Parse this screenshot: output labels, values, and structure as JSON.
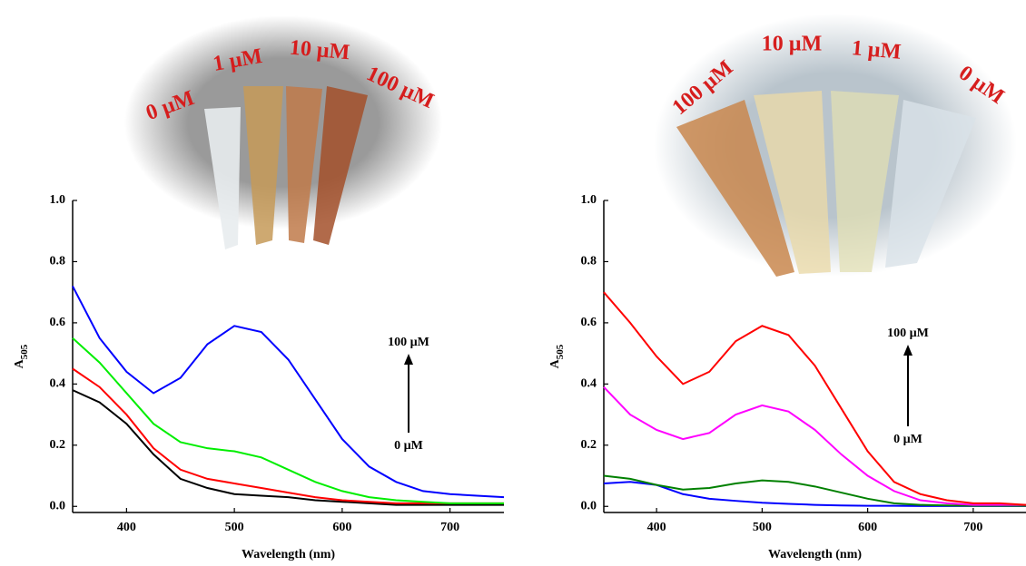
{
  "chart_data": [
    {
      "type": "line",
      "x_label": "Wavelength (nm)",
      "y_label": "A",
      "y_label_subscript": "505",
      "photo_labels": [
        "0 µM",
        "1 µM",
        "10 µM",
        "100 µM"
      ],
      "annotations": [
        "100 µM",
        "0 µM"
      ],
      "x": [
        350,
        375,
        400,
        425,
        450,
        475,
        500,
        525,
        550,
        575,
        600,
        625,
        650,
        675,
        700,
        725,
        750
      ],
      "xlim": [
        350,
        750
      ],
      "xticks": [
        400,
        500,
        600,
        700
      ],
      "ylim": [
        -0.02,
        1.0
      ],
      "yticks": [
        {
          "value": 0,
          "label": "0.0"
        },
        {
          "value": 0.2,
          "label": "0.2"
        },
        {
          "value": 0.4,
          "label": "0.4"
        },
        {
          "value": 0.6,
          "label": "0.6"
        },
        {
          "value": 0.8,
          "label": "0.8"
        },
        {
          "value": 1.0,
          "label": "1.0"
        }
      ],
      "series": [
        {
          "color": "#000000",
          "values": [
            0.38,
            0.34,
            0.27,
            0.17,
            0.09,
            0.06,
            0.04,
            0.035,
            0.03,
            0.02,
            0.015,
            0.01,
            0.005,
            0.005,
            0.005,
            0.005,
            0.005
          ]
        },
        {
          "color": "#ff0000",
          "values": [
            0.45,
            0.39,
            0.3,
            0.19,
            0.12,
            0.09,
            0.075,
            0.06,
            0.045,
            0.03,
            0.02,
            0.015,
            0.01,
            0.01,
            0.01,
            0.01,
            0.01
          ]
        },
        {
          "color": "#00ee00",
          "values": [
            0.55,
            0.47,
            0.37,
            0.27,
            0.21,
            0.19,
            0.18,
            0.16,
            0.12,
            0.08,
            0.05,
            0.03,
            0.02,
            0.015,
            0.01,
            0.01,
            0.01
          ]
        },
        {
          "color": "#0000ff",
          "values": [
            0.72,
            0.55,
            0.44,
            0.37,
            0.42,
            0.53,
            0.59,
            0.57,
            0.48,
            0.35,
            0.22,
            0.13,
            0.08,
            0.05,
            0.04,
            0.035,
            0.03
          ]
        }
      ]
    },
    {
      "type": "line",
      "x_label": "Wavelength (nm)",
      "y_label": "A",
      "y_label_subscript": "505",
      "photo_labels": [
        "100 µM",
        "10 µM",
        "1 µM",
        "0 µM"
      ],
      "annotations": [
        "100 µM",
        "0 µM"
      ],
      "x": [
        350,
        375,
        400,
        425,
        450,
        475,
        500,
        525,
        550,
        575,
        600,
        625,
        650,
        675,
        700,
        725,
        750
      ],
      "xlim": [
        350,
        750
      ],
      "xticks": [
        400,
        500,
        600,
        700
      ],
      "ylim": [
        -0.02,
        1.0
      ],
      "yticks": [
        {
          "value": 0,
          "label": "0.0"
        },
        {
          "value": 0.2,
          "label": "0.2"
        },
        {
          "value": 0.4,
          "label": "0.4"
        },
        {
          "value": 0.6,
          "label": "0.6"
        },
        {
          "value": 0.8,
          "label": "0.8"
        },
        {
          "value": 1.0,
          "label": "1.0"
        }
      ],
      "series": [
        {
          "color": "#0000ff",
          "values": [
            0.075,
            0.08,
            0.07,
            0.04,
            0.025,
            0.018,
            0.012,
            0.008,
            0.005,
            0.003,
            0.002,
            0.002,
            0.001,
            0.001,
            0.001,
            0.001,
            0.001
          ]
        },
        {
          "color": "#008000",
          "values": [
            0.1,
            0.09,
            0.07,
            0.055,
            0.06,
            0.075,
            0.085,
            0.08,
            0.065,
            0.045,
            0.025,
            0.01,
            0.005,
            0.003,
            0.002,
            0.002,
            0.002
          ]
        },
        {
          "color": "#ff00ff",
          "values": [
            0.39,
            0.3,
            0.25,
            0.22,
            0.24,
            0.3,
            0.33,
            0.31,
            0.25,
            0.17,
            0.1,
            0.05,
            0.02,
            0.01,
            0.005,
            0.005,
            0.005
          ]
        },
        {
          "color": "#ff0000",
          "values": [
            0.7,
            0.6,
            0.49,
            0.4,
            0.44,
            0.54,
            0.59,
            0.56,
            0.46,
            0.32,
            0.18,
            0.08,
            0.04,
            0.02,
            0.01,
            0.01,
            0.005
          ]
        }
      ]
    }
  ]
}
